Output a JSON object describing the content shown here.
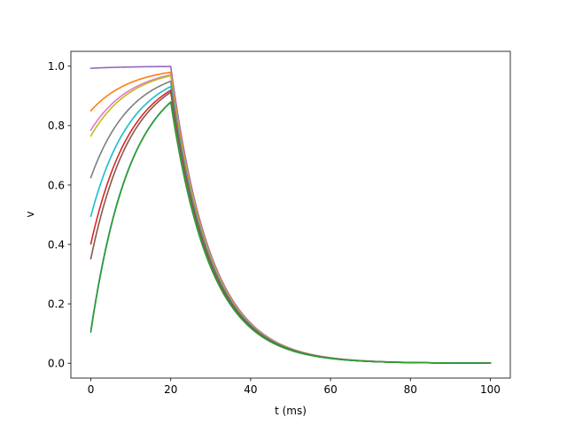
{
  "chart_data": {
    "type": "line",
    "title": "",
    "xlabel": "t (ms)",
    "ylabel": "v",
    "xlim": [
      -5,
      105
    ],
    "ylim": [
      -0.05,
      1.05
    ],
    "xticks": [
      0,
      20,
      40,
      60,
      80,
      100
    ],
    "yticks": [
      0.0,
      0.2,
      0.4,
      0.6,
      0.8,
      1.0
    ],
    "xtick_labels": [
      "0",
      "20",
      "40",
      "60",
      "80",
      "100"
    ],
    "ytick_labels": [
      "0.0",
      "0.2",
      "0.4",
      "0.6",
      "0.8",
      "1.0"
    ],
    "grid": false,
    "legend": "none",
    "charge_time_constant_ms": 10,
    "discharge_time_constant_ms": 10,
    "switch_time_ms": 20,
    "end_time_ms": 100,
    "series": [
      {
        "color": "#9467bd",
        "v0": 0.993
      },
      {
        "color": "#ff7f0e",
        "v0": 0.85
      },
      {
        "color": "#e377c2",
        "v0": 0.785
      },
      {
        "color": "#bcbd22",
        "v0": 0.765
      },
      {
        "color": "#7f7f7f",
        "v0": 0.625
      },
      {
        "color": "#17becf",
        "v0": 0.495
      },
      {
        "color": "#d62728",
        "v0": 0.402
      },
      {
        "color": "#8c564b",
        "v0": 0.352
      },
      {
        "color": "#1f77b4",
        "v0": 0.11
      },
      {
        "color": "#2ca02c",
        "v0": 0.105
      }
    ]
  }
}
